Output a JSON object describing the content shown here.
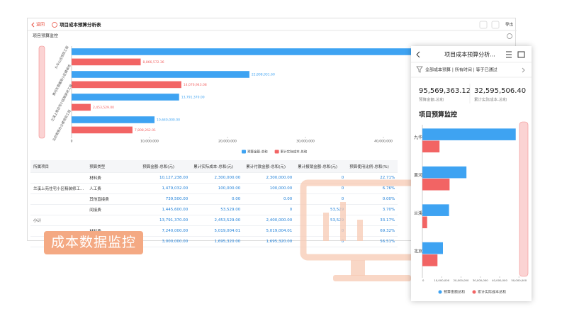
{
  "header": {
    "back": "返回",
    "title": "项目成本预算分析表",
    "export": "导出"
  },
  "section_title": "项目预算监控",
  "chart_data": [
    {
      "type": "bar",
      "orientation": "horizontal",
      "categories": [
        "九华山庄项目工程",
        "黄河东路嘉苑小区精装修",
        "兰溪上苑住宅小区精装修工程",
        "北京南苑办公楼项目工程"
      ],
      "series": [
        {
          "name": "预算金额-总和",
          "color": "#3ea3f2",
          "values": [
            48329061.52,
            22808931.6,
            13791370,
            10640000
          ],
          "value_labels": [
            null,
            "22,808,931.60",
            "13,791,370.00",
            "10,640,000.00"
          ]
        },
        {
          "name": "累计实际成本-总和",
          "color": "#f26464",
          "values": [
            8866572.36,
            14076943.08,
            2453529,
            7808262.01
          ],
          "value_labels": [
            "8,866,572.36",
            "14,076,943.08",
            "2,453,529.00",
            "7,808,262.01"
          ]
        }
      ],
      "xlim": [
        0,
        57000000
      ],
      "xticks": [
        0,
        {
          "value": 10000000,
          "label": "10,000,000"
        },
        {
          "value": 20000000,
          "label": "20,000,000"
        },
        {
          "value": 30000000,
          "label": "30,000,000"
        },
        {
          "value": 40000000,
          "label": "40,000,000"
        }
      ],
      "legend": "bottom"
    },
    {
      "type": "bar",
      "orientation": "horizontal",
      "title": "项目预算监控",
      "categories": [
        "九华山",
        "黄河东",
        "兰溪上",
        "北京南"
      ],
      "series": [
        {
          "name": "预算金额总和",
          "color": "#3ea3f2",
          "values": [
            48329061.52,
            22808931.6,
            13791370,
            10640000
          ]
        },
        {
          "name": "累计实际成本总和",
          "color": "#f26464",
          "values": [
            8866572.36,
            14076943.08,
            2453529,
            7808262.01
          ]
        }
      ],
      "xlim": [
        0,
        51000000
      ],
      "xticks": [
        0,
        {
          "value": 10000000,
          "label": "10,000,000"
        },
        {
          "value": 20000000,
          "label": "20,000,000"
        },
        {
          "value": 30000000,
          "label": "30,000,000"
        },
        {
          "value": 40000000,
          "label": "40,000,000"
        },
        {
          "value": 50000000,
          "label": "50,000,000"
        }
      ],
      "legend": "bottom"
    }
  ],
  "table": {
    "columns": [
      "所属项目",
      "预算类型",
      "预算金额-总和(元)",
      "累计实际成本-总和(元)",
      "累计付款金额-总和(元)",
      "累计报销金额-总和(元)",
      "预算使用比例-总和(%)"
    ],
    "rows": [
      [
        null,
        "材料费",
        "10,127,238.00",
        "2,300,000.00",
        "2,300,000.00",
        "0",
        "22.71%"
      ],
      [
        "兰溪上苑住宅小区精装修工...",
        "人工费",
        "1,479,032.00",
        "100,000.00",
        "100,000.00",
        "0",
        "6.76%"
      ],
      [
        null,
        "其他直接费",
        "739,500.00",
        "0.00",
        "0.00",
        "0",
        "0.00%"
      ],
      [
        null,
        "间接费",
        "1,445,600.00",
        "53,529.00",
        "0",
        "53,529",
        "3.70%"
      ],
      [
        "小计",
        null,
        "13,791,370.00",
        "2,453,529.00",
        "2,400,000.00",
        "53,529",
        "33.17%"
      ],
      [
        null,
        "材料费",
        "7,240,000.00",
        "5,019,004.01",
        "5,019,004.01",
        "0",
        "69.32%"
      ],
      [
        null,
        null,
        "3,000,000.00",
        "1,695,320.00",
        "1,695,320.00",
        "0",
        "56.51%"
      ]
    ]
  },
  "mobile": {
    "title": "项目成本预算分析...",
    "filter": "全部成本预算 | 所有时间 | 等于已通过",
    "kpis": [
      {
        "value": "95,569,363.12",
        "label": "预算金额-总和"
      },
      {
        "value": "32,595,506.40",
        "label": "累计实际成本-总和"
      }
    ]
  },
  "badge": "成本数据监控"
}
